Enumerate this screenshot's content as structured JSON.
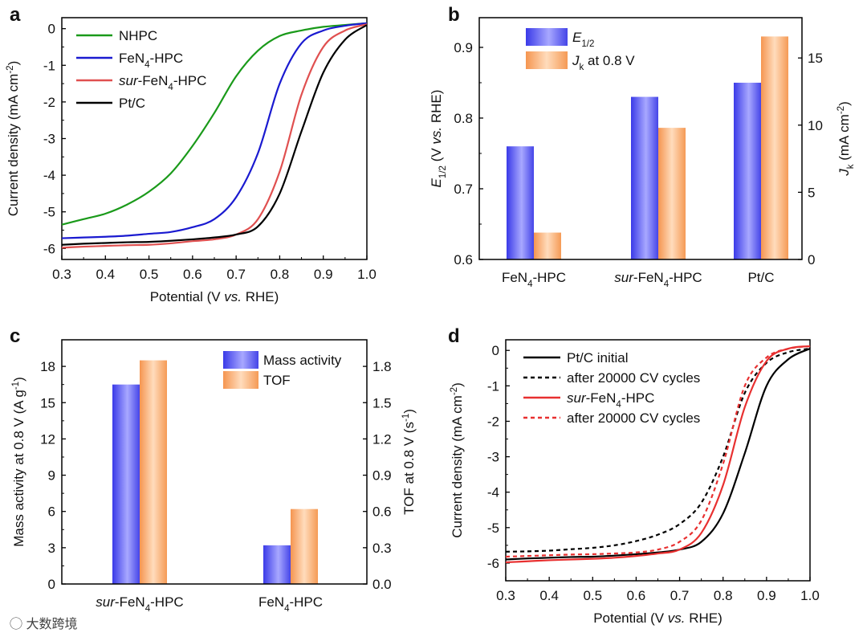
{
  "watermark": "大数跨境",
  "chart_data": [
    {
      "panel": "a",
      "type": "line",
      "xlabel": "Potential (V *vs.* RHE)",
      "ylabel": "Current density (mA cm^{-2})",
      "xlim": [
        0.3,
        1.0
      ],
      "ylim": [
        -6.3,
        0.3
      ],
      "xticks": [
        "0.3",
        "0.4",
        "0.5",
        "0.6",
        "0.7",
        "0.8",
        "0.9",
        "1.0"
      ],
      "yticks": [
        "0",
        "-1",
        "-2",
        "-3",
        "-4",
        "-5",
        "-6"
      ],
      "legend_position": "top-left",
      "x": [
        0.3,
        0.35,
        0.4,
        0.45,
        0.5,
        0.55,
        0.6,
        0.65,
        0.7,
        0.75,
        0.8,
        0.85,
        0.9,
        0.95,
        1.0
      ],
      "series": [
        {
          "name": "NHPC",
          "color": "#1a9a1a",
          "dash": false,
          "values": [
            -5.35,
            -5.2,
            -5.05,
            -4.8,
            -4.45,
            -3.95,
            -3.2,
            -2.3,
            -1.3,
            -0.6,
            -0.2,
            -0.05,
            0.05,
            0.1,
            0.15
          ]
        },
        {
          "name": "FeN_{4}-HPC",
          "color": "#1a1ad0",
          "dash": false,
          "values": [
            -5.72,
            -5.7,
            -5.68,
            -5.65,
            -5.6,
            -5.55,
            -5.42,
            -5.2,
            -4.6,
            -3.4,
            -1.5,
            -0.4,
            -0.05,
            0.08,
            0.15
          ]
        },
        {
          "name": "*sur*-FeN_{4}-HPC",
          "color": "#e05050",
          "dash": false,
          "values": [
            -5.98,
            -5.95,
            -5.93,
            -5.91,
            -5.9,
            -5.86,
            -5.8,
            -5.75,
            -5.62,
            -5.2,
            -3.9,
            -1.8,
            -0.5,
            -0.05,
            0.12
          ]
        },
        {
          "name": "Pt/C",
          "color": "#000000",
          "dash": false,
          "values": [
            -5.9,
            -5.87,
            -5.85,
            -5.83,
            -5.82,
            -5.79,
            -5.75,
            -5.7,
            -5.62,
            -5.4,
            -4.5,
            -2.8,
            -1.2,
            -0.3,
            0.1
          ]
        }
      ]
    },
    {
      "panel": "b",
      "type": "bar",
      "categories": [
        "FeN_{4}-HPC",
        "*sur*-FeN_{4}-HPC",
        "Pt/C"
      ],
      "ylabel": "*E*_{1/2} (V *vs.* RHE)",
      "y2label": "*J*_{k} (mA cm^{-2})",
      "ylim": [
        0.6,
        0.942
      ],
      "y2lim": [
        0,
        18
      ],
      "yticks": [
        "0.6",
        "0.7",
        "0.8",
        "0.9"
      ],
      "y2ticks": [
        "0",
        "5",
        "10",
        "15"
      ],
      "legend_position": "top-left",
      "series": [
        {
          "name": "*E*_{1/2}",
          "axis": "left",
          "color": "#4a4af0",
          "values": [
            0.76,
            0.83,
            0.85
          ]
        },
        {
          "name": "*J*_{k} at 0.8 V",
          "axis": "right",
          "color": "#f5a060",
          "values": [
            2.0,
            9.8,
            16.6
          ]
        }
      ]
    },
    {
      "panel": "c",
      "type": "bar",
      "categories": [
        "*sur*-FeN_{4}-HPC",
        "FeN_{4}-HPC"
      ],
      "ylabel": "Mass activity at 0.8 V (A g^{-1})",
      "y2label": "TOF at 0.8 V (s^{-1})",
      "ylim": [
        0,
        20.2
      ],
      "y2lim": [
        0,
        2.02
      ],
      "yticks": [
        "0",
        "3",
        "6",
        "9",
        "12",
        "15",
        "18"
      ],
      "y2ticks": [
        "0.0",
        "0.3",
        "0.6",
        "0.9",
        "1.2",
        "1.5",
        "1.8"
      ],
      "legend_position": "top-right",
      "series": [
        {
          "name": "Mass activity",
          "axis": "left",
          "color": "#4a4af0",
          "values": [
            16.5,
            3.2
          ]
        },
        {
          "name": "TOF",
          "axis": "right",
          "color": "#f5a060",
          "values": [
            1.85,
            0.62
          ]
        }
      ]
    },
    {
      "panel": "d",
      "type": "line",
      "xlabel": "Potential (V *vs.* RHE)",
      "ylabel": "Current density (mA cm^{-2})",
      "xlim": [
        0.3,
        1.0
      ],
      "ylim": [
        -6.5,
        0.3
      ],
      "xticks": [
        "0.3",
        "0.4",
        "0.5",
        "0.6",
        "0.7",
        "0.8",
        "0.9",
        "1.0"
      ],
      "yticks": [
        "0",
        "-1",
        "-2",
        "-3",
        "-4",
        "-5",
        "-6"
      ],
      "legend_position": "top-left",
      "x": [
        0.3,
        0.35,
        0.4,
        0.45,
        0.5,
        0.55,
        0.6,
        0.65,
        0.7,
        0.75,
        0.8,
        0.85,
        0.9,
        0.95,
        1.0
      ],
      "series": [
        {
          "name": "Pt/C initial",
          "color": "#000000",
          "dash": false,
          "values": [
            -5.9,
            -5.87,
            -5.85,
            -5.83,
            -5.82,
            -5.79,
            -5.75,
            -5.7,
            -5.62,
            -5.4,
            -4.6,
            -2.9,
            -1.0,
            -0.25,
            0.05
          ]
        },
        {
          "name": "after 20000 CV cycles",
          "color": "#000000",
          "dash": true,
          "values": [
            -5.68,
            -5.67,
            -5.65,
            -5.61,
            -5.57,
            -5.5,
            -5.38,
            -5.2,
            -4.9,
            -4.3,
            -3.0,
            -1.2,
            -0.35,
            -0.05,
            0.05
          ]
        },
        {
          "name": "*sur*-FeN_{4}-HPC",
          "color": "#e83030",
          "dash": false,
          "values": [
            -5.98,
            -5.95,
            -5.92,
            -5.9,
            -5.88,
            -5.85,
            -5.8,
            -5.73,
            -5.62,
            -5.15,
            -3.8,
            -1.6,
            -0.3,
            0.05,
            0.12
          ]
        },
        {
          "name": "after 20000 CV cycles",
          "color": "#e83030",
          "dash": true,
          "values": [
            -5.82,
            -5.8,
            -5.78,
            -5.76,
            -5.75,
            -5.73,
            -5.7,
            -5.62,
            -5.4,
            -4.8,
            -3.2,
            -1.0,
            -0.2,
            0.05,
            0.12
          ]
        }
      ]
    }
  ]
}
